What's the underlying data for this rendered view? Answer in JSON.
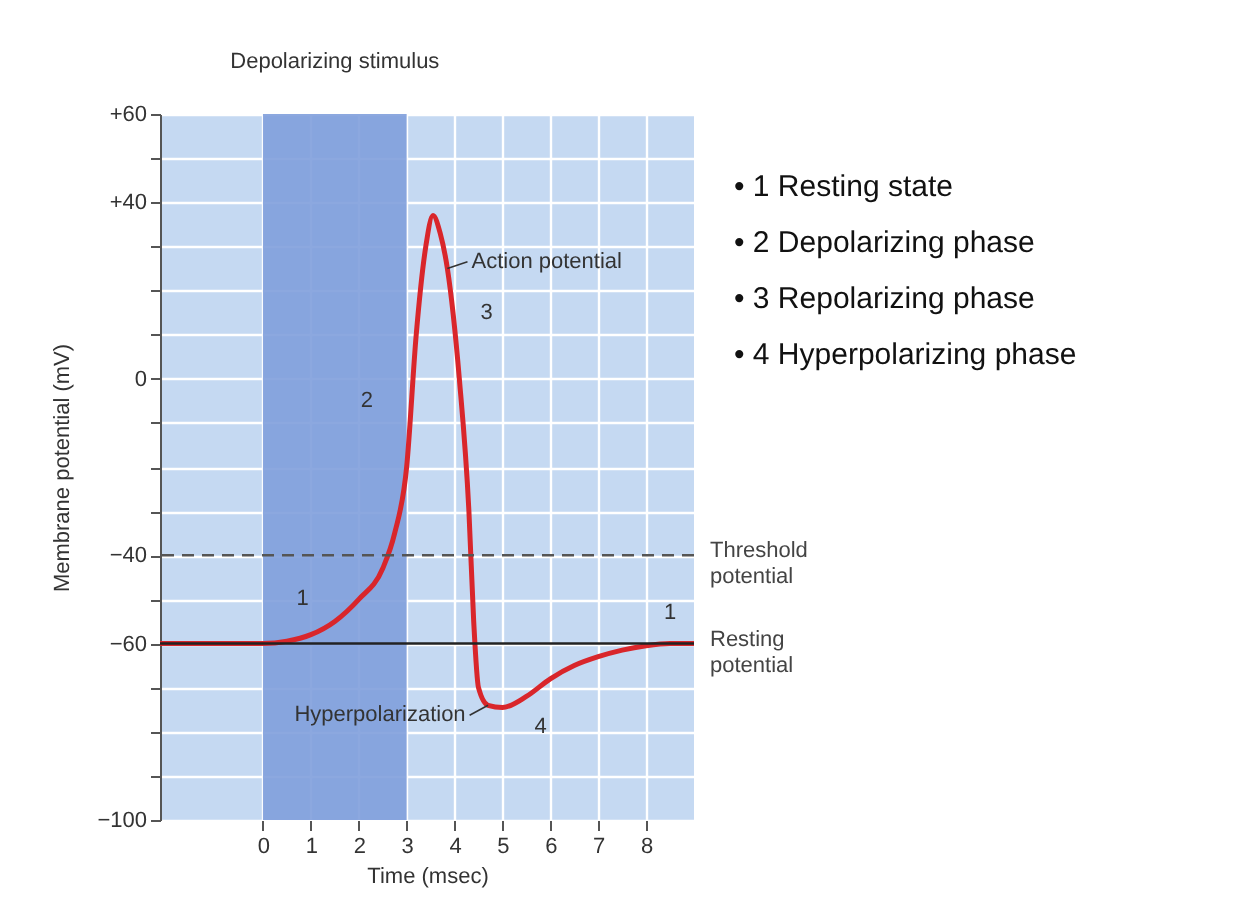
{
  "chart_data": {
    "type": "line",
    "xlabel": "Time (msec)",
    "ylabel": "Membrane potential (mV)",
    "x": [
      -2.15,
      -1,
      0,
      0.5,
      1,
      1.5,
      2,
      2.5,
      2.75,
      3,
      3.2,
      3.4,
      3.55,
      3.7,
      3.85,
      4.1,
      4.3,
      4.4,
      4.5,
      4.7,
      5,
      5.5,
      6,
      6.5,
      7,
      7.5,
      8,
      8.5,
      9
    ],
    "series": [
      {
        "color": "#d9262b",
        "values": [
          -60,
          -60,
          -60,
          -59.5,
          -58,
          -55,
          -50,
          -43,
          -35,
          -20,
          10,
          30,
          37,
          33,
          25,
          0,
          -30,
          -55,
          -70,
          -74,
          -74.5,
          -72,
          -68,
          -65,
          -63,
          -61.5,
          -60.5,
          -60,
          -60
        ]
      }
    ],
    "xlim": [
      -2.15,
      9
    ],
    "xticks": [
      0,
      1,
      2,
      3,
      4,
      5,
      6,
      7,
      8
    ],
    "ylim": [
      -100,
      60
    ],
    "yticks": [
      {
        "value": -100,
        "label": "−100"
      },
      {
        "value": -90,
        "label": null
      },
      {
        "value": -80,
        "label": null
      },
      {
        "value": -70,
        "label": null
      },
      {
        "value": -60,
        "label": "−60"
      },
      {
        "value": -50,
        "label": null
      },
      {
        "value": -40,
        "label": "−40"
      },
      {
        "value": -30,
        "label": null
      },
      {
        "value": -20,
        "label": null
      },
      {
        "value": -10,
        "label": null
      },
      0,
      {
        "value": 10,
        "label": null
      },
      {
        "value": 20,
        "label": null
      },
      {
        "value": 30,
        "label": null
      },
      {
        "value": 40,
        "label": "+40"
      },
      {
        "value": 50,
        "label": null
      },
      {
        "value": 60,
        "label": "+60"
      }
    ],
    "grid": true,
    "legend": false,
    "line_style": "solid",
    "bands": [
      {
        "axis": "x",
        "from": 0,
        "to": 3,
        "label": "Depolarizing stimulus",
        "color": "#7f9fdb"
      }
    ],
    "ref_lines": [
      {
        "axis": "y",
        "value": -40,
        "label": "Threshold potential",
        "color": "#555555",
        "line_style": "dashed"
      },
      {
        "axis": "y",
        "value": -60,
        "label": "Resting potential",
        "color": "#222222",
        "line_style": "solid"
      }
    ],
    "annotations": [
      {
        "text": "Action potential",
        "x": 3.85,
        "y": 25
      },
      {
        "text": "Hyperpolarization",
        "x": 4.7,
        "y": -74
      },
      "1",
      "2",
      "3",
      "4",
      "1",
      "• 1  Resting state",
      "• 2  Depolarizing phase",
      "• 3  Repolarizing phase",
      "• 4  Hyperpolarizing phase"
    ]
  }
}
